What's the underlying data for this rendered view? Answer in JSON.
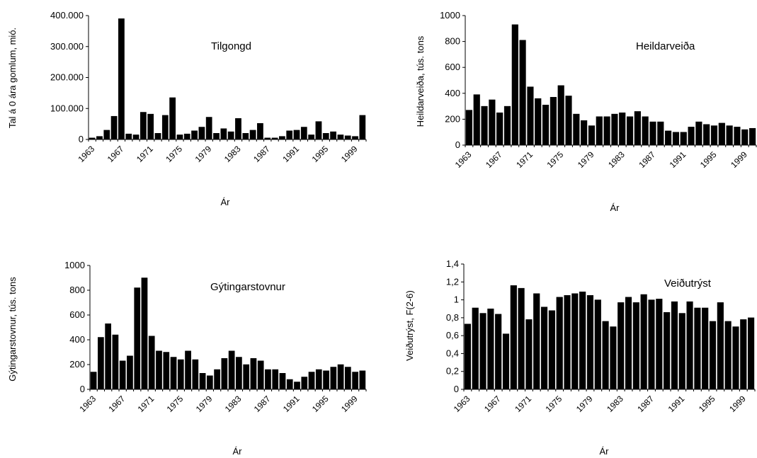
{
  "chart_data": [
    {
      "type": "bar",
      "title": "Tilgongd",
      "ylabel": "Tal á 0 ára gomlum, mió.",
      "xlabel": "Ár",
      "ylim": [
        0,
        400000
      ],
      "yticks": [
        "0",
        "100.000",
        "200.000",
        "300.000",
        "400.000"
      ],
      "xtick_labels": [
        "1963",
        "1967",
        "1971",
        "1975",
        "1979",
        "1983",
        "1987",
        "1991",
        "1995",
        "1999"
      ],
      "categories": [
        1963,
        1964,
        1965,
        1966,
        1967,
        1968,
        1969,
        1970,
        1971,
        1972,
        1973,
        1974,
        1975,
        1976,
        1977,
        1978,
        1979,
        1980,
        1981,
        1982,
        1983,
        1984,
        1985,
        1986,
        1987,
        1988,
        1989,
        1990,
        1991,
        1992,
        1993,
        1994,
        1995,
        1996,
        1997,
        1998,
        1999,
        2000
      ],
      "values": [
        5000,
        10000,
        30000,
        75000,
        390000,
        18000,
        15000,
        88000,
        82000,
        20000,
        78000,
        135000,
        15000,
        18000,
        28000,
        40000,
        72000,
        20000,
        35000,
        25000,
        68000,
        20000,
        30000,
        52000,
        5000,
        5000,
        10000,
        28000,
        30000,
        40000,
        15000,
        58000,
        20000,
        25000,
        15000,
        12000,
        10000,
        78000
      ]
    },
    {
      "type": "bar",
      "title": "Heildarveiða",
      "ylabel": "Heildarveiða, tús. tons",
      "xlabel": "Ár",
      "ylim": [
        0,
        1000
      ],
      "yticks": [
        "0",
        "200",
        "400",
        "600",
        "800",
        "1000"
      ],
      "xtick_labels": [
        "1963",
        "1967",
        "1971",
        "1975",
        "1979",
        "1983",
        "1987",
        "1991",
        "1995",
        "1999"
      ],
      "categories": [
        1963,
        1964,
        1965,
        1966,
        1967,
        1968,
        1969,
        1970,
        1971,
        1972,
        1973,
        1974,
        1975,
        1976,
        1977,
        1978,
        1979,
        1980,
        1981,
        1982,
        1983,
        1984,
        1985,
        1986,
        1987,
        1988,
        1989,
        1990,
        1991,
        1992,
        1993,
        1994,
        1995,
        1996,
        1997,
        1998,
        1999,
        2000
      ],
      "values": [
        270,
        390,
        300,
        350,
        250,
        300,
        930,
        810,
        450,
        360,
        310,
        370,
        460,
        380,
        240,
        190,
        150,
        220,
        220,
        240,
        250,
        220,
        260,
        220,
        180,
        180,
        110,
        100,
        100,
        140,
        180,
        160,
        150,
        170,
        150,
        140,
        120,
        130
      ]
    },
    {
      "type": "bar",
      "title": "Gýtingarstovnur",
      "ylabel": "Gýtingarstovnur, tús. tons",
      "xlabel": "Ár",
      "ylim": [
        0,
        1000
      ],
      "yticks": [
        "0",
        "200",
        "400",
        "600",
        "800",
        "1000"
      ],
      "xtick_labels": [
        "1963",
        "1967",
        "1971",
        "1975",
        "1979",
        "1983",
        "1987",
        "1991",
        "1995",
        "1999"
      ],
      "categories": [
        1963,
        1964,
        1965,
        1966,
        1967,
        1968,
        1969,
        1970,
        1971,
        1972,
        1973,
        1974,
        1975,
        1976,
        1977,
        1978,
        1979,
        1980,
        1981,
        1982,
        1983,
        1984,
        1985,
        1986,
        1987,
        1988,
        1989,
        1990,
        1991,
        1992,
        1993,
        1994,
        1995,
        1996,
        1997,
        1998,
        1999,
        2000
      ],
      "values": [
        140,
        420,
        530,
        440,
        230,
        270,
        820,
        900,
        430,
        310,
        300,
        260,
        240,
        310,
        240,
        130,
        110,
        160,
        250,
        310,
        260,
        200,
        250,
        230,
        160,
        160,
        130,
        80,
        60,
        100,
        140,
        160,
        150,
        180,
        200,
        180,
        140,
        150
      ]
    },
    {
      "type": "bar",
      "title": "Veiðutrýst",
      "ylabel": "Veiðutrýst, F(2-6)",
      "xlabel": "Ár",
      "ylim": [
        0,
        1.4
      ],
      "yticks": [
        "0",
        "0,2",
        "0,4",
        "0,6",
        "0,8",
        "1",
        "1,2",
        "1,4"
      ],
      "xtick_labels": [
        "1963",
        "1967",
        "1971",
        "1975",
        "1979",
        "1983",
        "1987",
        "1991",
        "1995",
        "1999"
      ],
      "categories": [
        1963,
        1964,
        1965,
        1966,
        1967,
        1968,
        1969,
        1970,
        1971,
        1972,
        1973,
        1974,
        1975,
        1976,
        1977,
        1978,
        1979,
        1980,
        1981,
        1982,
        1983,
        1984,
        1985,
        1986,
        1987,
        1988,
        1989,
        1990,
        1991,
        1992,
        1993,
        1994,
        1995,
        1996,
        1997,
        1998,
        1999,
        2000
      ],
      "values": [
        0.73,
        0.91,
        0.85,
        0.9,
        0.84,
        0.62,
        1.16,
        1.13,
        0.78,
        1.07,
        0.92,
        0.88,
        1.03,
        1.05,
        1.07,
        1.09,
        1.05,
        1.0,
        0.76,
        0.7,
        0.97,
        1.03,
        0.97,
        1.06,
        1.0,
        1.01,
        0.86,
        0.98,
        0.85,
        0.98,
        0.91,
        0.91,
        0.76,
        0.97,
        0.76,
        0.7,
        0.78,
        0.8
      ]
    }
  ]
}
